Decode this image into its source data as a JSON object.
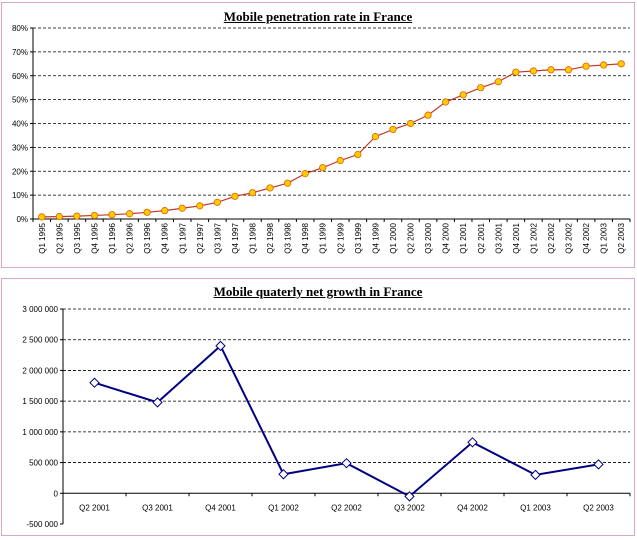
{
  "chart_data": [
    {
      "type": "line",
      "title": "Mobile penetration rate in France",
      "xlabel": "",
      "ylabel": "",
      "ylim": [
        0,
        80
      ],
      "yticks": [
        "0%",
        "10%",
        "20%",
        "30%",
        "40%",
        "50%",
        "60%",
        "70%",
        "80%"
      ],
      "grid": "horizontal dashed",
      "legend": "none",
      "categories": [
        "Q1 1995",
        "Q2 1995",
        "Q3 1995",
        "Q4 1995",
        "Q1 1996",
        "Q2 1996",
        "Q3 1996",
        "Q4 1996",
        "Q1 1997",
        "Q2 1997",
        "Q3 1997",
        "Q4 1997",
        "Q1 1998",
        "Q2 1998",
        "Q3 1998",
        "Q4 1998",
        "Q1 1999",
        "Q2 1999",
        "Q3 1999",
        "Q4 1999",
        "Q1 2000",
        "Q2 2000",
        "Q3 2000",
        "Q4 2000",
        "Q1 2001",
        "Q2 2001",
        "Q3 2001",
        "Q4 2001",
        "Q1 2002",
        "Q2 2002",
        "Q3 2002",
        "Q4 2002",
        "Q1 2003",
        "Q2 2003"
      ],
      "values": [
        0.9,
        1.0,
        1.2,
        1.5,
        1.8,
        2.2,
        2.8,
        3.5,
        4.5,
        5.5,
        7,
        9.5,
        11,
        13,
        15,
        19,
        21.5,
        24.5,
        27,
        34.5,
        37.5,
        40,
        43.5,
        49,
        52,
        55,
        57.5,
        61.5,
        62,
        62.5,
        62.5,
        64,
        64.5,
        65
      ],
      "colors": {
        "line": "#c0392b",
        "marker_fill": "#ffcc00",
        "marker_stroke": "#e06000"
      }
    },
    {
      "type": "line",
      "title": "Mobile quaterly net growth in France",
      "xlabel": "",
      "ylabel": "",
      "ylim": [
        -500000,
        3000000
      ],
      "yticks": [
        "-500 000",
        "0",
        "500 000",
        "1 000 000",
        "1 500 000",
        "2 000 000",
        "2 500 000",
        "3 000 000"
      ],
      "grid": "horizontal dashed",
      "legend": "none",
      "categories": [
        "Q2 2001",
        "Q3 2001",
        "Q4 2001",
        "Q1 2002",
        "Q2 2002",
        "Q3 2002",
        "Q4 2002",
        "Q1 2003",
        "Q2 2003"
      ],
      "values": [
        1800000,
        1480000,
        2400000,
        310000,
        490000,
        -50000,
        830000,
        300000,
        470000
      ],
      "colors": {
        "line": "#000080",
        "marker_fill": "#ffffff",
        "marker_stroke": "#000080"
      }
    }
  ]
}
